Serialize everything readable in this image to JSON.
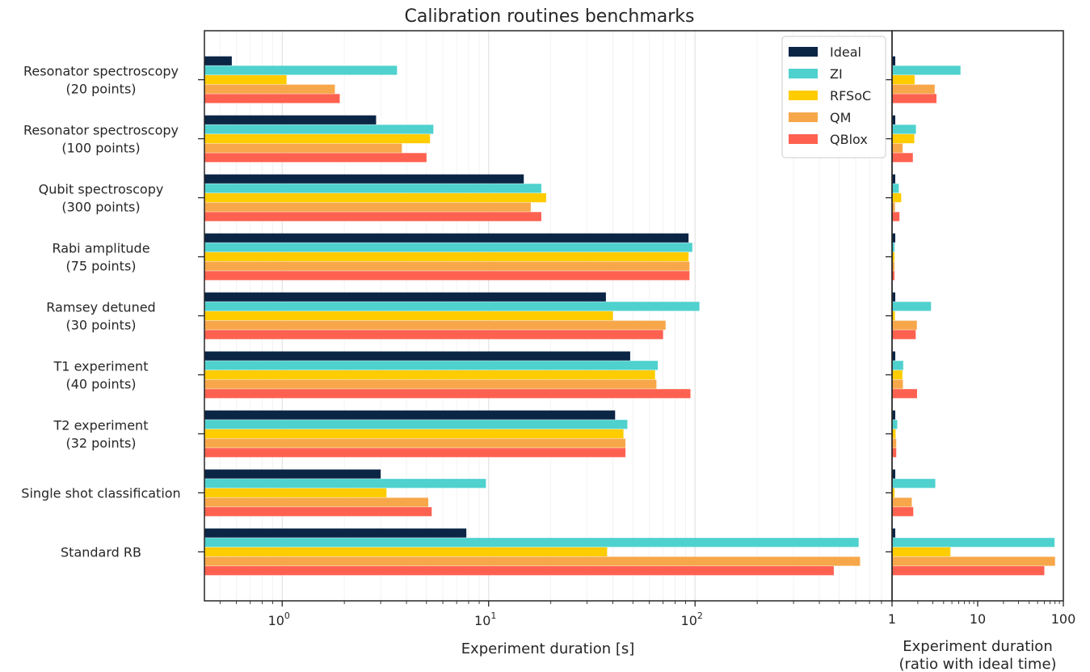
{
  "chart_data": [
    {
      "type": "bar",
      "orientation": "horizontal",
      "title": "Calibration routines benchmarks",
      "xlabel": "Experiment duration [s]",
      "ylabel": "",
      "xscale": "log",
      "xlim": [
        0.42,
        900
      ],
      "xticks": [
        {
          "value": 1,
          "base": "10",
          "exp": "0"
        },
        {
          "value": 10,
          "base": "10",
          "exp": "1"
        },
        {
          "value": 100,
          "base": "10",
          "exp": "2"
        }
      ],
      "grid": true,
      "legend_position": "top-right",
      "categories": [
        [
          "Resonator spectroscopy",
          "(20 points)"
        ],
        [
          "Resonator spectroscopy",
          "(100 points)"
        ],
        [
          "Qubit spectroscopy",
          "(300 points)"
        ],
        [
          "Rabi amplitude",
          "(75 points)"
        ],
        [
          "Ramsey detuned",
          "(30 points)"
        ],
        [
          "T1 experiment",
          "(40 points)"
        ],
        [
          "T2 experiment",
          "(32 points)"
        ],
        [
          "Single shot classification"
        ],
        [
          "Standard RB"
        ]
      ],
      "series": [
        {
          "name": "Ideal",
          "color": "#0b2545",
          "values": [
            0.57,
            2.85,
            14.8,
            93,
            37,
            48.5,
            41,
            3.0,
            7.8
          ]
        },
        {
          "name": "ZI",
          "color": "#4fd1ce",
          "values": [
            3.6,
            5.4,
            18,
            97,
            105,
            66,
            47,
            9.7,
            620
          ]
        },
        {
          "name": "RFSoC",
          "color": "#ffcc00",
          "values": [
            1.05,
            5.2,
            19,
            93,
            40,
            64,
            45,
            3.2,
            37.5
          ]
        },
        {
          "name": "QM",
          "color": "#f7a74a",
          "values": [
            1.8,
            3.8,
            16,
            94,
            72,
            65,
            46,
            5.1,
            630
          ]
        },
        {
          "name": "QBlox",
          "color": "#ff6150",
          "values": [
            1.9,
            5.0,
            18,
            94,
            70,
            95,
            46,
            5.3,
            470
          ]
        }
      ]
    },
    {
      "type": "bar",
      "orientation": "horizontal",
      "title": "",
      "xlabel": "Experiment duration\n(ratio with ideal time)",
      "xscale": "log",
      "xlim": [
        1,
        100
      ],
      "xticks": [
        {
          "value": 1,
          "label": "1"
        },
        {
          "value": 10,
          "label": "10"
        },
        {
          "value": 100,
          "label": "100"
        }
      ],
      "series": [
        {
          "name": "Ideal",
          "values": [
            1,
            1,
            1,
            1,
            1,
            1,
            1,
            1,
            1
          ]
        },
        {
          "name": "ZI",
          "values": [
            6.3,
            1.9,
            1.2,
            1.04,
            2.85,
            1.35,
            1.15,
            3.2,
            79
          ]
        },
        {
          "name": "RFSoC",
          "values": [
            1.84,
            1.82,
            1.28,
            1.0,
            1.08,
            1.32,
            1.1,
            1.07,
            4.8
          ]
        },
        {
          "name": "QM",
          "values": [
            3.15,
            1.33,
            1.08,
            1.01,
            1.95,
            1.34,
            1.12,
            1.7,
            80
          ]
        },
        {
          "name": "QBlox",
          "values": [
            3.3,
            1.75,
            1.22,
            1.01,
            1.89,
            1.96,
            1.12,
            1.77,
            60
          ]
        }
      ]
    }
  ]
}
